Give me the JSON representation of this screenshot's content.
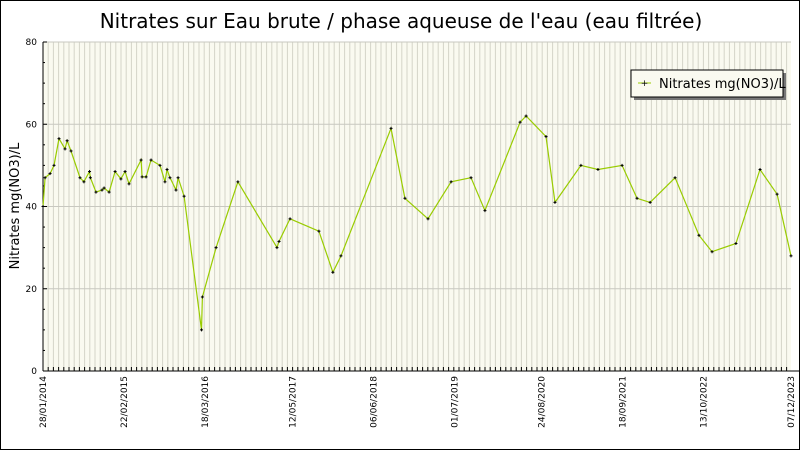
{
  "chart_data": {
    "type": "line",
    "title": "Nitrates sur Eau brute / phase aqueuse de l'eau (eau filtrée)",
    "xlabel": "",
    "ylabel": "Nitrates mg(NO3)/L",
    "ylim": [
      0,
      80
    ],
    "yticks": [
      "0",
      "20",
      "40",
      "60",
      "80"
    ],
    "xlim": [
      "2014-01-28",
      "2023-12-07"
    ],
    "xticks": [
      {
        "date": "2014-01-28",
        "label": "28/01/2014"
      },
      {
        "date": "2015-02-22",
        "label": "22/02/2015"
      },
      {
        "date": "2016-03-18",
        "label": "18/03/2016"
      },
      {
        "date": "2017-05-12",
        "label": "12/05/2017"
      },
      {
        "date": "2018-06-06",
        "label": "06/06/2018"
      },
      {
        "date": "2019-07-01",
        "label": "01/07/2019"
      },
      {
        "date": "2020-08-24",
        "label": "24/08/2020"
      },
      {
        "date": "2021-09-18",
        "label": "18/09/2021"
      },
      {
        "date": "2022-10-13",
        "label": "13/10/2022"
      },
      {
        "date": "2023-12-07",
        "label": "07/12/2023"
      }
    ],
    "grid": true,
    "legend_position": "top-right",
    "colors": {
      "line": "#99cc00",
      "marker": "#000000",
      "plot_bg": "#fafaf0",
      "grid": "#cfcfc4"
    },
    "series": [
      {
        "name": "Nitrates mg(NO3)/L",
        "points": [
          [
            "2014-01-28",
            40
          ],
          [
            "2014-02-07",
            47
          ],
          [
            "2014-03-03",
            48
          ],
          [
            "2014-03-22",
            50
          ],
          [
            "2014-04-15",
            56.5
          ],
          [
            "2014-05-14",
            54
          ],
          [
            "2014-05-24",
            56
          ],
          [
            "2014-06-12",
            53.5
          ],
          [
            "2014-07-25",
            47
          ],
          [
            "2014-08-13",
            46
          ],
          [
            "2014-09-09",
            48.5
          ],
          [
            "2014-09-13",
            47
          ],
          [
            "2014-10-10",
            43.5
          ],
          [
            "2014-11-08",
            44
          ],
          [
            "2014-11-18",
            44.5
          ],
          [
            "2014-12-12",
            43.5
          ],
          [
            "2015-01-10",
            48.5
          ],
          [
            "2015-02-07",
            46.7
          ],
          [
            "2015-02-27",
            48.5
          ],
          [
            "2015-03-18",
            45.5
          ],
          [
            "2015-05-15",
            51.3
          ],
          [
            "2015-05-20",
            47.2
          ],
          [
            "2015-06-08",
            47.2
          ],
          [
            "2015-07-02",
            51.3
          ],
          [
            "2015-08-14",
            50
          ],
          [
            "2015-09-07",
            46
          ],
          [
            "2015-09-17",
            49
          ],
          [
            "2015-10-01",
            47
          ],
          [
            "2015-10-30",
            44
          ],
          [
            "2015-11-09",
            47
          ],
          [
            "2015-12-08",
            42.5
          ],
          [
            "2016-03-01",
            10
          ],
          [
            "2016-03-05",
            18
          ],
          [
            "2016-05-10",
            30
          ],
          [
            "2016-08-23",
            46
          ],
          [
            "2017-02-27",
            30
          ],
          [
            "2017-03-09",
            31.5
          ],
          [
            "2017-05-01",
            37
          ],
          [
            "2017-09-17",
            34
          ],
          [
            "2017-11-23",
            24
          ],
          [
            "2018-01-01",
            28
          ],
          [
            "2018-08-30",
            59
          ],
          [
            "2018-11-05",
            42
          ],
          [
            "2019-02-24",
            37
          ],
          [
            "2019-06-15",
            46
          ],
          [
            "2019-09-19",
            47
          ],
          [
            "2019-11-25",
            39
          ],
          [
            "2020-05-12",
            60.5
          ],
          [
            "2020-06-10",
            62
          ],
          [
            "2020-09-14",
            57
          ],
          [
            "2020-10-27",
            41
          ],
          [
            "2021-03-01",
            50
          ],
          [
            "2021-05-22",
            49
          ],
          [
            "2021-09-15",
            50
          ],
          [
            "2021-11-26",
            42
          ],
          [
            "2022-01-28",
            41
          ],
          [
            "2022-05-28",
            47
          ],
          [
            "2022-09-20",
            33
          ],
          [
            "2022-11-22",
            29
          ],
          [
            "2023-03-17",
            31
          ],
          [
            "2023-07-11",
            49
          ],
          [
            "2023-10-01",
            43
          ],
          [
            "2023-12-07",
            28
          ]
        ]
      }
    ]
  }
}
